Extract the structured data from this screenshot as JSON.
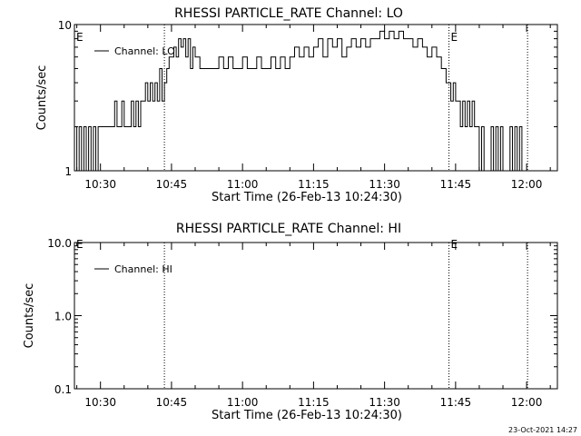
{
  "footer": {
    "date": "23-Oct-2021 14:27"
  },
  "chart_data": [
    {
      "type": "line",
      "title": "RHESSI PARTICLE_RATE Channel: LO",
      "xlabel": "Start Time (26-Feb-13 10:24:30)",
      "ylabel": "Counts/sec",
      "x_tick_labels": [
        "10:30",
        "10:45",
        "11:00",
        "11:15",
        "11:30",
        "11:45",
        "12:00"
      ],
      "x_tick_minutes": [
        630,
        645,
        660,
        675,
        690,
        705,
        720
      ],
      "y_tick_labels": [
        "1",
        "10"
      ],
      "y_tick_values": [
        1,
        10
      ],
      "yscale": "log",
      "xlim_minutes": [
        624.5,
        726.5
      ],
      "ylim": [
        1,
        10
      ],
      "legend": {
        "label": "Channel: LO",
        "placement": "top-left"
      },
      "event_markers": [
        {
          "label": "E",
          "minute": 624.5
        },
        {
          "label": "E",
          "minute": 703.6
        }
      ],
      "vertical_lines_minutes": [
        643.5,
        703.6,
        720.2
      ],
      "series": [
        {
          "name": "Channel: LO",
          "color": "#000000",
          "x_minutes": [
            624.5,
            625.0,
            625.5,
            626.0,
            626.5,
            627.0,
            627.5,
            628.0,
            628.5,
            629.0,
            629.5,
            630.0,
            630.5,
            631.0,
            631.5,
            632.0,
            632.5,
            633.0,
            633.5,
            634.0,
            634.5,
            635.0,
            635.5,
            636.0,
            636.5,
            637.0,
            637.5,
            638.0,
            638.5,
            639.0,
            639.5,
            640.0,
            640.5,
            641.0,
            641.5,
            642.0,
            642.5,
            643.0,
            643.5,
            644.0,
            644.5,
            645.0,
            645.5,
            646.0,
            646.5,
            647.0,
            647.5,
            648.0,
            648.5,
            649.0,
            649.5,
            650.0,
            651.0,
            652.0,
            653.0,
            654.0,
            655.0,
            656.0,
            657.0,
            658.0,
            659.0,
            660.0,
            661.0,
            662.0,
            663.0,
            664.0,
            665.0,
            666.0,
            667.0,
            668.0,
            669.0,
            670.0,
            671.0,
            672.0,
            673.0,
            674.0,
            675.0,
            676.0,
            677.0,
            678.0,
            679.0,
            680.0,
            681.0,
            682.0,
            683.0,
            684.0,
            685.0,
            686.0,
            687.0,
            688.0,
            689.0,
            690.0,
            691.0,
            692.0,
            693.0,
            694.0,
            695.0,
            696.0,
            697.0,
            698.0,
            699.0,
            700.0,
            701.0,
            702.0,
            702.5,
            703.0,
            703.5,
            704.0,
            704.5,
            705.0,
            705.5,
            706.0,
            706.5,
            707.0,
            707.5,
            708.0,
            708.5,
            709.0,
            709.5,
            710.0,
            710.5,
            711.0,
            711.5,
            712.0,
            712.5,
            713.0,
            713.5,
            714.0,
            714.5,
            715.0,
            715.5,
            716.0,
            716.5,
            717.0,
            717.5,
            718.0,
            718.5,
            719.0,
            719.5,
            720.0
          ],
          "values": [
            2,
            1,
            2,
            1,
            2,
            1,
            2,
            1,
            2,
            1,
            2,
            2,
            2,
            2,
            2,
            2,
            2,
            3,
            2,
            2,
            3,
            2,
            2,
            2,
            3,
            2,
            3,
            2,
            3,
            3,
            4,
            3,
            4,
            3,
            4,
            3,
            5,
            3,
            4,
            5,
            6,
            6,
            7,
            6,
            8,
            7,
            8,
            6,
            8,
            5,
            7,
            6,
            5,
            5,
            5,
            5,
            6,
            5,
            6,
            5,
            5,
            6,
            5,
            5,
            6,
            5,
            5,
            6,
            5,
            6,
            5,
            6,
            7,
            6,
            7,
            6,
            7,
            8,
            6,
            8,
            7,
            8,
            6,
            7,
            8,
            7,
            8,
            7,
            8,
            8,
            9,
            8,
            9,
            8,
            9,
            8,
            8,
            7,
            8,
            7,
            6,
            7,
            6,
            5,
            5,
            4,
            4,
            3,
            4,
            3,
            3,
            2,
            3,
            2,
            3,
            2,
            3,
            2,
            2,
            1,
            2,
            1,
            1,
            1,
            2,
            1,
            2,
            1,
            2,
            1,
            1,
            1,
            2,
            1,
            2,
            1,
            2,
            1,
            1,
            1
          ]
        }
      ]
    },
    {
      "type": "line",
      "title": "RHESSI PARTICLE_RATE Channel: HI",
      "xlabel": "Start Time (26-Feb-13 10:24:30)",
      "ylabel": "Counts/sec",
      "x_tick_labels": [
        "10:30",
        "10:45",
        "11:00",
        "11:15",
        "11:30",
        "11:45",
        "12:00"
      ],
      "x_tick_minutes": [
        630,
        645,
        660,
        675,
        690,
        705,
        720
      ],
      "y_tick_labels": [
        "0.1",
        "1.0",
        "10.0"
      ],
      "y_tick_values": [
        0.1,
        1.0,
        10.0
      ],
      "yscale": "log",
      "xlim_minutes": [
        624.5,
        726.5
      ],
      "ylim": [
        0.1,
        10.0
      ],
      "legend": {
        "label": "Channel: HI",
        "placement": "top-left"
      },
      "event_markers": [
        {
          "label": "E",
          "minute": 624.5
        },
        {
          "label": "E",
          "minute": 703.6
        }
      ],
      "vertical_lines_minutes": [
        643.5,
        703.6,
        720.2
      ],
      "series": [
        {
          "name": "Channel: HI",
          "color": "#000000",
          "x_minutes": [],
          "values": []
        }
      ]
    }
  ]
}
